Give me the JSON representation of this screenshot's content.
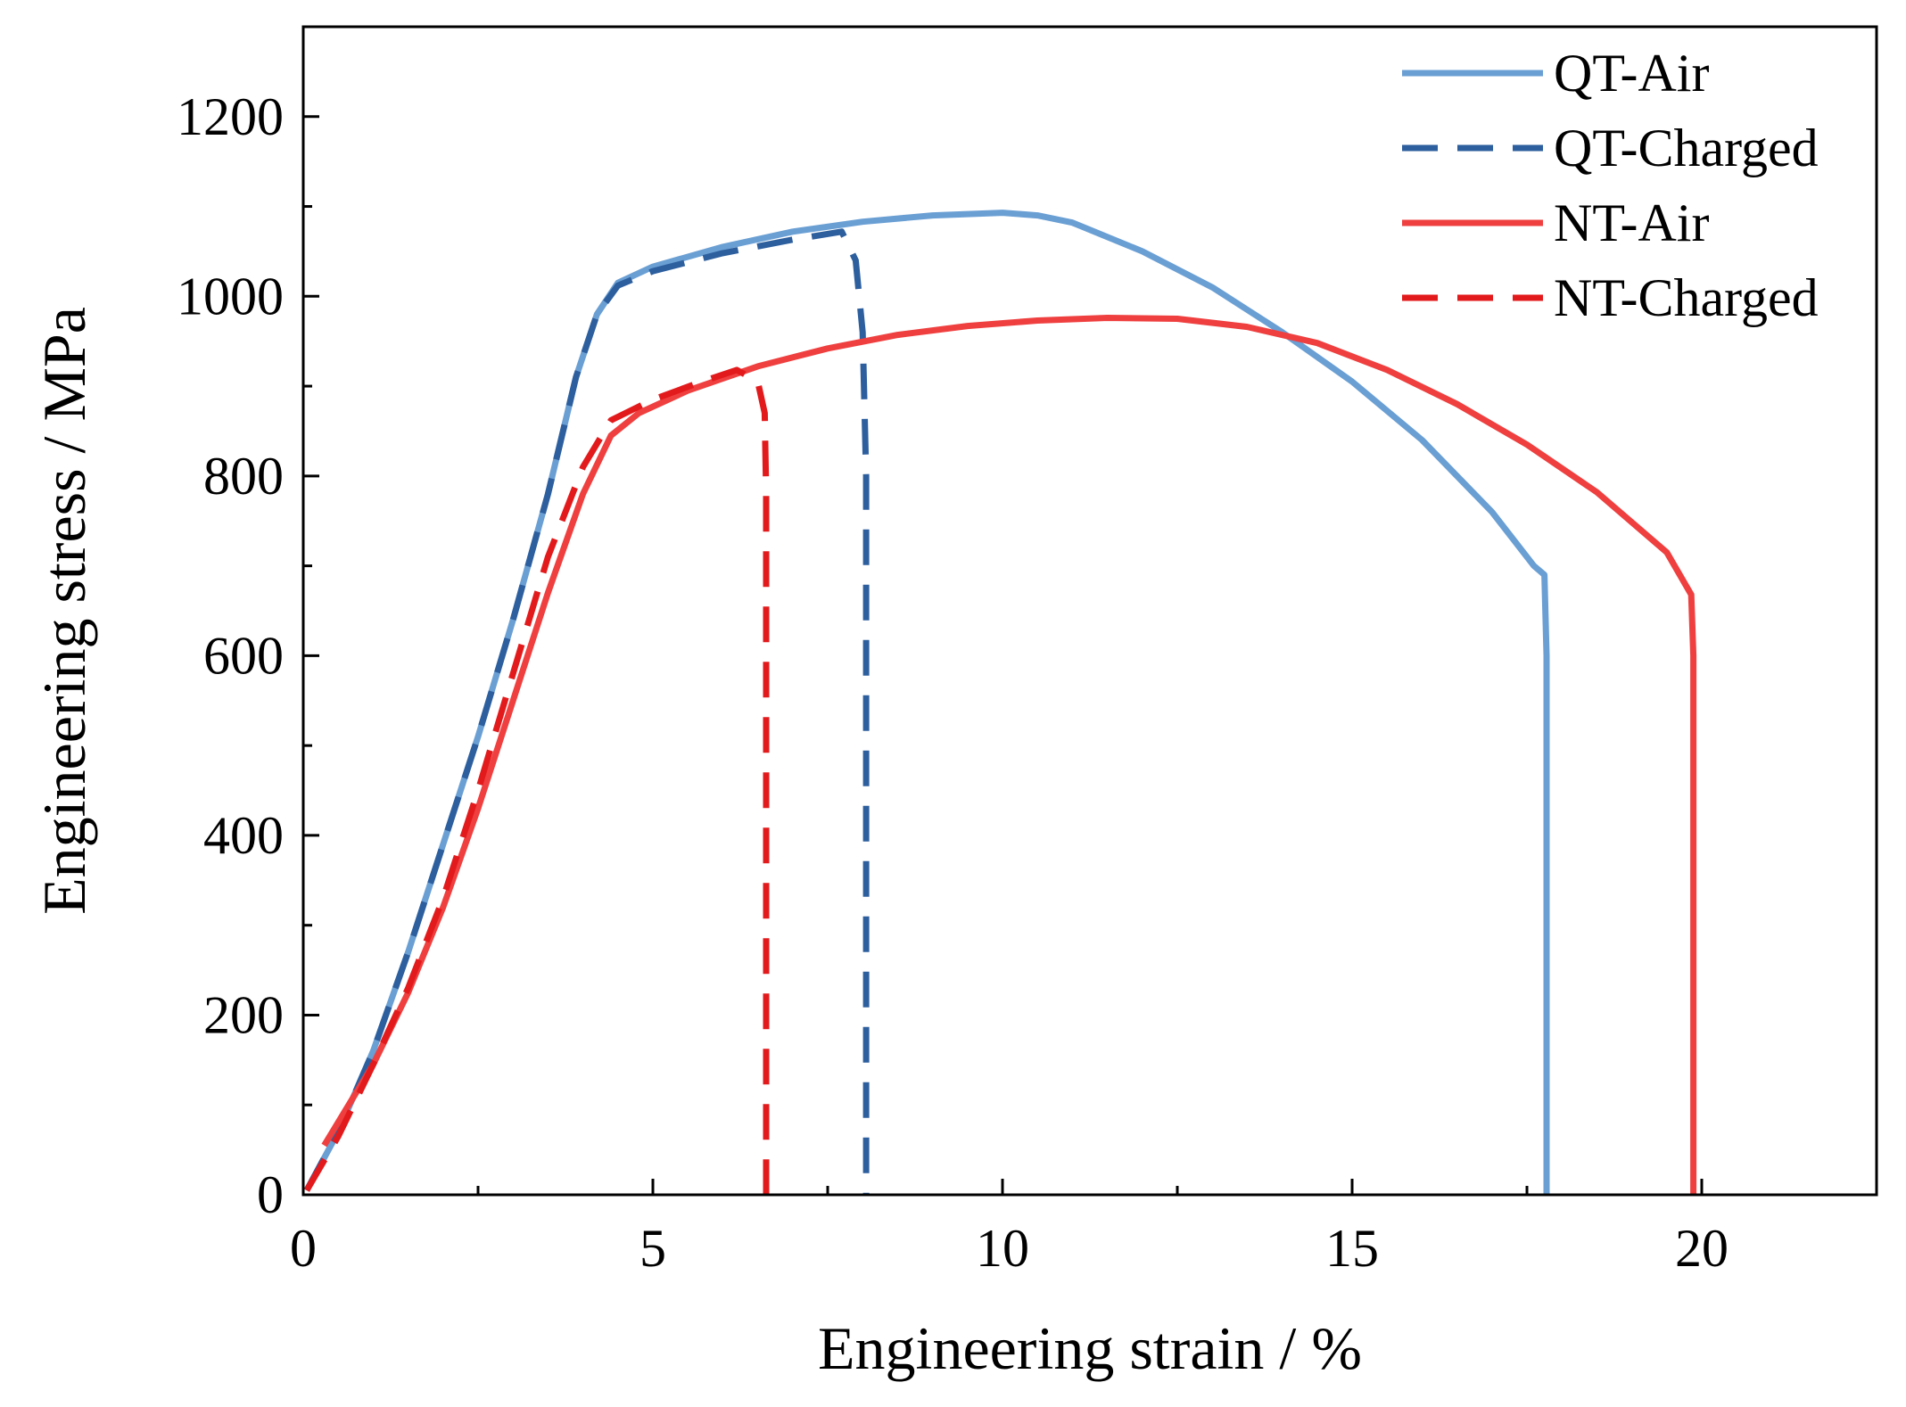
{
  "chart_data": {
    "type": "line",
    "title": "",
    "xlabel": "Engineering strain / %",
    "ylabel": "Engineering stress / MPa",
    "xlim": [
      0,
      22.5
    ],
    "ylim": [
      0,
      1300
    ],
    "x_ticks": [
      0,
      5,
      10,
      15,
      20
    ],
    "y_ticks": [
      0,
      200,
      400,
      600,
      800,
      1000,
      1200
    ],
    "x_tick_labels": [
      "0",
      "5",
      "10",
      "15",
      "20"
    ],
    "y_tick_labels": [
      "0",
      "200",
      "400",
      "600",
      "800",
      "1000",
      "1200"
    ],
    "x_minor_ticks": [
      2.5,
      7.5,
      12.5,
      17.5
    ],
    "y_minor_ticks": [
      100,
      300,
      500,
      700,
      900,
      1100
    ],
    "grid": false,
    "legend_position": "top-right",
    "series": [
      {
        "name": "QT-Air",
        "color": "#6a9fd4",
        "dash": "solid",
        "points": [
          [
            0.05,
            5
          ],
          [
            0.5,
            70
          ],
          [
            1.0,
            160
          ],
          [
            1.5,
            270
          ],
          [
            2.0,
            390
          ],
          [
            2.5,
            510
          ],
          [
            3.0,
            640
          ],
          [
            3.5,
            780
          ],
          [
            3.9,
            910
          ],
          [
            4.2,
            980
          ],
          [
            4.5,
            1015
          ],
          [
            5.0,
            1033
          ],
          [
            6.0,
            1055
          ],
          [
            7.0,
            1072
          ],
          [
            8.0,
            1083
          ],
          [
            9.0,
            1090
          ],
          [
            10.0,
            1093
          ],
          [
            10.5,
            1090
          ],
          [
            11.0,
            1082
          ],
          [
            12.0,
            1050
          ],
          [
            13.0,
            1010
          ],
          [
            14.0,
            960
          ],
          [
            15.0,
            905
          ],
          [
            16.0,
            840
          ],
          [
            17.0,
            760
          ],
          [
            17.6,
            700
          ],
          [
            17.75,
            690
          ],
          [
            17.78,
            600
          ],
          [
            17.78,
            0
          ]
        ]
      },
      {
        "name": "QT-Charged",
        "color": "#2d5f9e",
        "dash": "dashed",
        "points": [
          [
            0.05,
            5
          ],
          [
            0.5,
            70
          ],
          [
            1.0,
            160
          ],
          [
            1.5,
            270
          ],
          [
            2.0,
            390
          ],
          [
            2.5,
            510
          ],
          [
            3.0,
            640
          ],
          [
            3.5,
            780
          ],
          [
            3.9,
            910
          ],
          [
            4.2,
            980
          ],
          [
            4.5,
            1012
          ],
          [
            5.0,
            1028
          ],
          [
            6.0,
            1048
          ],
          [
            7.0,
            1063
          ],
          [
            7.7,
            1072
          ],
          [
            7.9,
            1040
          ],
          [
            8.0,
            960
          ],
          [
            8.05,
            800
          ],
          [
            8.05,
            0
          ]
        ]
      },
      {
        "name": "NT-Air",
        "color": "#ef3f3f",
        "dash": "solid",
        "points": [
          [
            0.3,
            55
          ],
          [
            1.0,
            145
          ],
          [
            1.5,
            225
          ],
          [
            2.0,
            320
          ],
          [
            2.5,
            430
          ],
          [
            3.0,
            550
          ],
          [
            3.5,
            670
          ],
          [
            4.0,
            780
          ],
          [
            4.4,
            845
          ],
          [
            4.8,
            870
          ],
          [
            5.5,
            895
          ],
          [
            6.5,
            922
          ],
          [
            7.5,
            942
          ],
          [
            8.5,
            957
          ],
          [
            9.5,
            967
          ],
          [
            10.5,
            973
          ],
          [
            11.5,
            976
          ],
          [
            12.5,
            975
          ],
          [
            13.5,
            966
          ],
          [
            14.5,
            948
          ],
          [
            15.5,
            918
          ],
          [
            16.5,
            880
          ],
          [
            17.5,
            835
          ],
          [
            18.5,
            782
          ],
          [
            19.5,
            715
          ],
          [
            19.85,
            668
          ],
          [
            19.88,
            600
          ],
          [
            19.88,
            0
          ]
        ]
      },
      {
        "name": "NT-Charged",
        "color": "#e31a1c",
        "dash": "dashed",
        "points": [
          [
            0.05,
            5
          ],
          [
            0.5,
            65
          ],
          [
            1.0,
            145
          ],
          [
            1.5,
            230
          ],
          [
            2.0,
            330
          ],
          [
            2.5,
            450
          ],
          [
            3.0,
            580
          ],
          [
            3.5,
            710
          ],
          [
            4.0,
            810
          ],
          [
            4.4,
            862
          ],
          [
            5.0,
            885
          ],
          [
            5.7,
            905
          ],
          [
            6.2,
            918
          ],
          [
            6.5,
            905
          ],
          [
            6.6,
            870
          ],
          [
            6.62,
            780
          ],
          [
            6.62,
            0
          ]
        ]
      }
    ]
  }
}
